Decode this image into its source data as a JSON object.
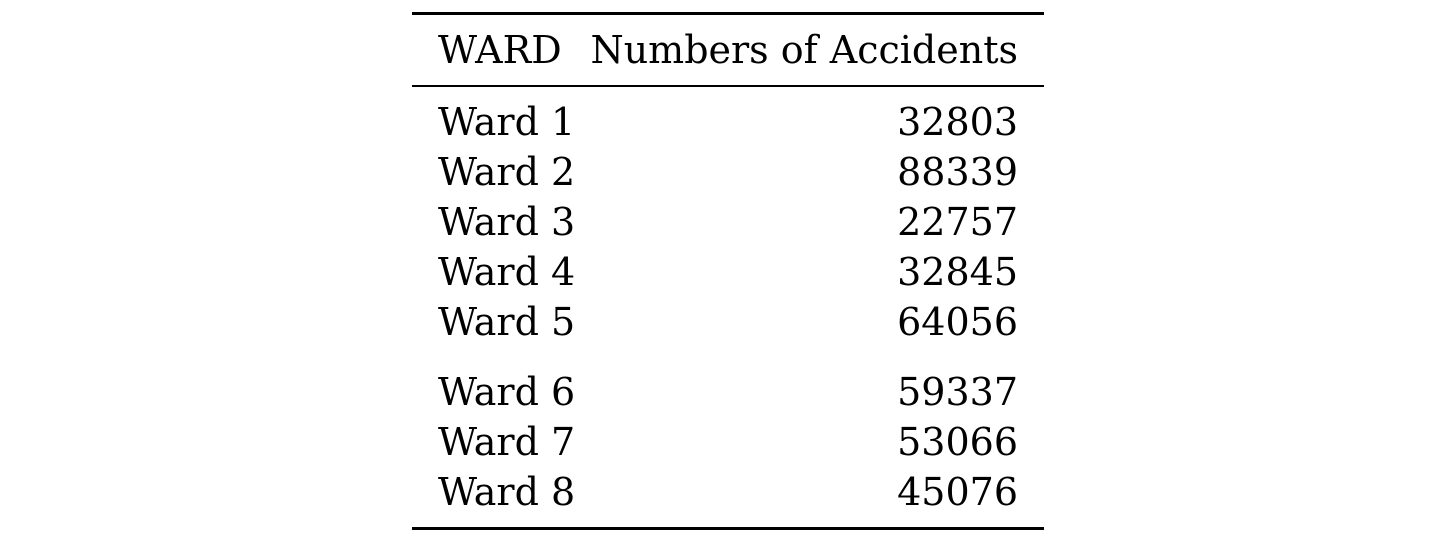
{
  "table": {
    "columns": [
      "WARD",
      "Numbers of Accidents"
    ],
    "group1": [
      {
        "ward": "Ward 1",
        "accidents": "32803"
      },
      {
        "ward": "Ward 2",
        "accidents": "88339"
      },
      {
        "ward": "Ward 3",
        "accidents": "22757"
      },
      {
        "ward": "Ward 4",
        "accidents": "32845"
      },
      {
        "ward": "Ward 5",
        "accidents": "64056"
      }
    ],
    "group2": [
      {
        "ward": "Ward 6",
        "accidents": "59337"
      },
      {
        "ward": "Ward 7",
        "accidents": "53066"
      },
      {
        "ward": "Ward 8",
        "accidents": "45076"
      }
    ]
  }
}
